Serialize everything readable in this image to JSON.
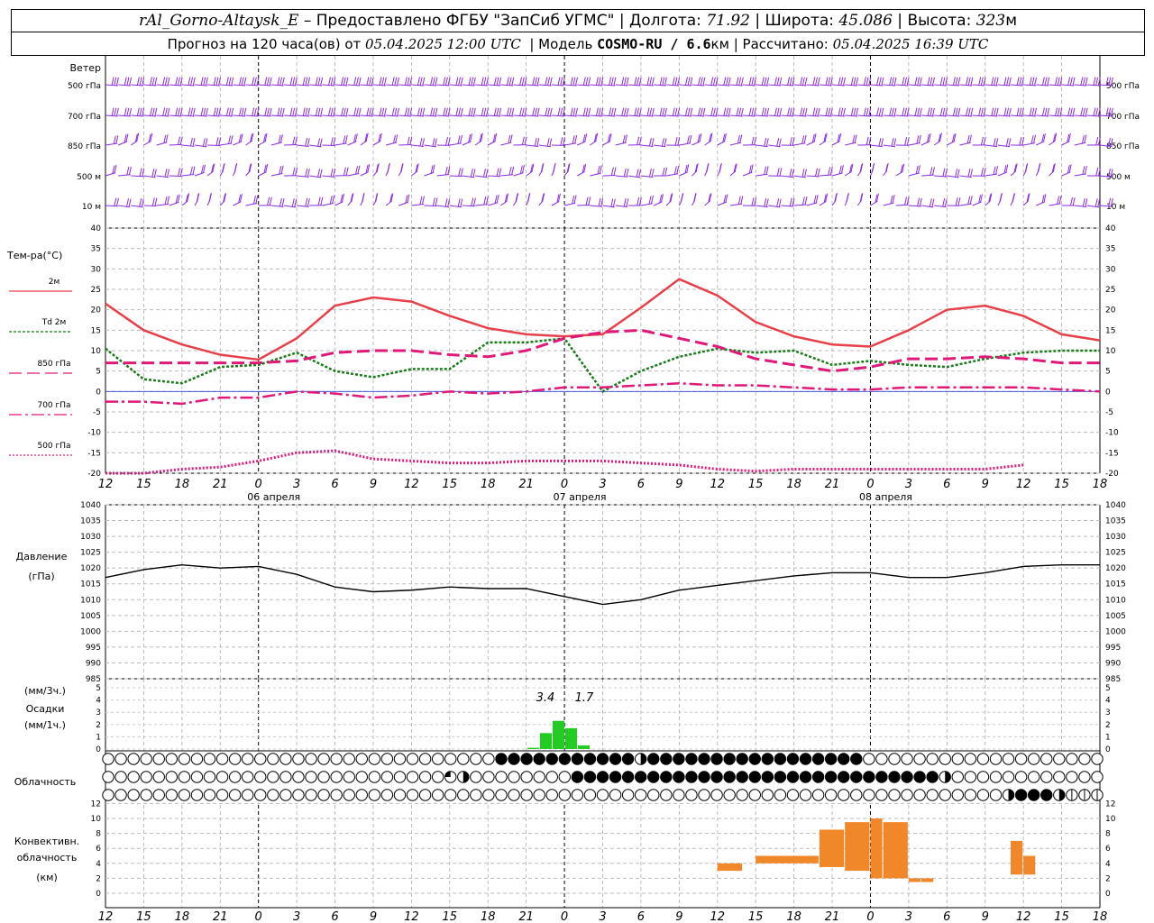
{
  "header": {
    "station": "rAl_Gorno-Altaysk_E",
    "provided_by": "– Предоставлено ФГБУ \"ЗапСиб УГМС\"",
    "lon_label": "Долгота:",
    "lon": "71.92",
    "lat_label": "Широта:",
    "lat": "45.086",
    "alt_label": "Высота:",
    "alt": "323",
    "alt_unit": "м",
    "forecast_label": "Прогноз на 120 часа(ов) от",
    "forecast_start": "05.04.2025 12:00 UTC",
    "model_label": "Модель",
    "model": "COSMO-RU / 6.6",
    "model_unit": "км",
    "calc_label": "Рассчитано:",
    "calc_time": "05.04.2025 16:39 UTC"
  },
  "wind_panel": {
    "title": "Ветер",
    "levels": [
      "500 гПа",
      "700 гПа",
      "850 гПа",
      "500 м",
      "10  м"
    ],
    "colors": {
      "barb": "#8a2be2"
    }
  },
  "temp_panel": {
    "title": "Тем-ра(°С)",
    "legend": [
      {
        "label": "2м",
        "color": "#e8404a",
        "dash": ""
      },
      {
        "label": "Td  2м",
        "color": "#1a7a1a",
        "dash": "3,2"
      },
      {
        "label": "850 гПа",
        "color": "#e0187a",
        "dash": "14,6"
      },
      {
        "label": "700 гПа",
        "color": "#e0187a",
        "dash": "14,4,3,4"
      },
      {
        "label": "500 гПа",
        "color": "#e0187a",
        "dash": "2,2"
      }
    ],
    "yticks": [
      "40",
      "35",
      "30",
      "25",
      "20",
      "15",
      "10",
      "5",
      "0",
      "-5",
      "-10",
      "-15",
      "-20"
    ]
  },
  "pressure_panel": {
    "title": "Давление",
    "unit": "(гПа)",
    "yticks": [
      "1040",
      "1035",
      "1030",
      "1025",
      "1020",
      "1015",
      "1010",
      "1005",
      "1000",
      "995",
      "990",
      "985"
    ]
  },
  "precip_panel": {
    "unit_top": "(мм/3ч.)",
    "title": "Осадки",
    "unit_bottom": "(мм/1ч.)",
    "yticks": [
      "5",
      "4",
      "3",
      "2",
      "1",
      "0"
    ],
    "annotations": [
      "3.4",
      "1.7"
    ]
  },
  "cloud_panel": {
    "title": "Облачность"
  },
  "conv_panel": {
    "title_1": "Конвективн.",
    "title_2": "облачность",
    "unit": "(км)",
    "yticks": [
      "12",
      "10",
      "8",
      "6",
      "4",
      "2",
      "0"
    ]
  },
  "x_axis": {
    "tick_labels": [
      "12",
      "15",
      "18",
      "21",
      "0",
      "3",
      "6",
      "9",
      "12",
      "15",
      "18",
      "21",
      "0",
      "3",
      "6",
      "9",
      "12",
      "15",
      "18",
      "21",
      "0",
      "3",
      "6",
      "9",
      "12",
      "15",
      "18"
    ],
    "dates": [
      "06 апреля",
      "07 апреля",
      "08 апреля"
    ]
  },
  "chart_data": {
    "type": "line",
    "x_hours_from_start": [
      0,
      3,
      6,
      9,
      12,
      15,
      18,
      21,
      24,
      27,
      30,
      33,
      36,
      39,
      42,
      45,
      48,
      51,
      54,
      57,
      60,
      63,
      66,
      69,
      72,
      75,
      78
    ],
    "series": [
      {
        "name": "2м",
        "values": [
          21.5,
          15,
          11.5,
          9,
          7.8,
          13,
          21,
          23,
          22,
          18.5,
          15.5,
          14,
          13.5,
          14,
          20.5,
          27.5,
          23.5,
          17,
          13.5,
          11.5,
          11,
          15,
          20,
          21,
          18.5,
          14,
          12.5
        ]
      },
      {
        "name": "Td  2м",
        "values": [
          10.5,
          3,
          2,
          6,
          6.5,
          9.5,
          5,
          3.5,
          5.5,
          5.5,
          12,
          12,
          13,
          0,
          5,
          8.5,
          10.5,
          9.5,
          10,
          6.5,
          7.5,
          6.5,
          6,
          8,
          9.5,
          10,
          10
        ]
      },
      {
        "name": "850 гПа",
        "values": [
          7,
          7,
          7,
          7,
          7,
          7.5,
          9.5,
          10,
          10,
          9,
          8.5,
          10,
          13,
          14.5,
          15,
          13,
          11,
          8,
          6.5,
          5,
          6,
          8,
          8,
          8.5,
          8,
          7,
          7
        ]
      },
      {
        "name": "700 гПа",
        "values": [
          -2.5,
          -2.5,
          -3,
          -1.5,
          -1.5,
          0,
          -0.5,
          -1.5,
          -1,
          0,
          -0.5,
          0,
          1,
          1,
          1.5,
          2,
          1.5,
          1.5,
          1,
          0.5,
          0.5,
          1,
          1,
          1,
          1,
          0.5,
          0
        ]
      },
      {
        "name": "500 гПа",
        "values": [
          -20,
          -20,
          -19,
          -18.5,
          -17,
          -15,
          -14.5,
          -16.5,
          -17,
          -17.5,
          -17.5,
          -17,
          -17,
          -17,
          -17.5,
          -18,
          -19,
          -19.5,
          -19,
          -19,
          -19,
          -19,
          -19,
          -19,
          -18
        ]
      },
      {
        "name": "Давление",
        "values": [
          1017,
          1019.5,
          1021,
          1020,
          1020.5,
          1018,
          1014,
          1012.5,
          1013,
          1014,
          1013.5,
          1013.5,
          1011,
          1008.5,
          1010,
          1013,
          1014.5,
          1016,
          1017.5,
          1018.5,
          1018.5,
          1017,
          1017,
          1018.5,
          1020.5,
          1021,
          1021
        ]
      }
    ],
    "precip_mm_per_hour": {
      "x_hours": [
        51,
        52,
        53,
        54,
        55
      ],
      "values": [
        0.1,
        1.3,
        2.3,
        1.7,
        0.3
      ]
    },
    "convective_cloud_km": [
      {
        "x0": 48,
        "x1": 50,
        "bottom": 3,
        "top": 4
      },
      {
        "x0": 51,
        "x1": 56,
        "bottom": 4,
        "top": 5
      },
      {
        "x0": 56,
        "x1": 58,
        "bottom": 3.5,
        "top": 8.5
      },
      {
        "x0": 58,
        "x1": 60,
        "bottom": 3,
        "top": 9.5
      },
      {
        "x0": 60,
        "x1": 61,
        "bottom": 2,
        "top": 10
      },
      {
        "x0": 61,
        "x1": 63,
        "bottom": 2,
        "top": 9.5
      },
      {
        "x0": 63,
        "x1": 64,
        "bottom": 1.5,
        "top": 2
      },
      {
        "x0": 64,
        "x1": 65,
        "bottom": 1.5,
        "top": 2
      },
      {
        "x0": 71,
        "x1": 72,
        "bottom": 2.5,
        "top": 7
      },
      {
        "x0": 72,
        "x1": 73,
        "bottom": 2.5,
        "top": 5
      }
    ],
    "colors": {
      "precip": "#22cc22",
      "convective": "#f0882a",
      "pressure": "#000000",
      "zero_line": "#3344dd"
    }
  }
}
